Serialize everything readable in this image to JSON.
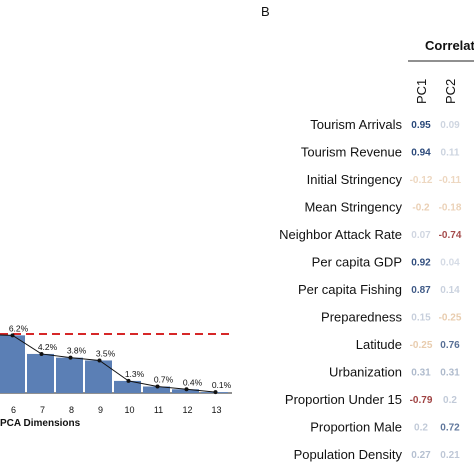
{
  "chart_data": [
    {
      "type": "bar",
      "xlabel": "PCA Dimensions",
      "categories": [
        "6",
        "7",
        "8",
        "9",
        "10",
        "11",
        "12",
        "13"
      ],
      "values": [
        6.2,
        4.2,
        3.8,
        3.5,
        1.3,
        0.7,
        0.4,
        0.1
      ],
      "value_labels": [
        "6.2%",
        "4.2%",
        "3.8%",
        "3.5%",
        "1.3%",
        "0.7%",
        "0.4%",
        "0.1%"
      ],
      "overlay": {
        "type": "line",
        "values": [
          6.2,
          4.2,
          3.8,
          3.5,
          1.3,
          0.7,
          0.4,
          0.1
        ]
      },
      "reference_line": {
        "style": "dashed",
        "color": "#d62728"
      },
      "bar_color": "#5b7fb5"
    },
    {
      "type": "table",
      "panel": "B",
      "title": "Correlat",
      "columns": [
        "PC1",
        "PC2"
      ],
      "rows": [
        {
          "label": "Tourism Arrivals",
          "values": [
            "0.95",
            "0.09"
          ]
        },
        {
          "label": "Tourism Revenue",
          "values": [
            "0.94",
            "0.11"
          ]
        },
        {
          "label": "Initial Stringency",
          "values": [
            "-0.12",
            "-0.11"
          ]
        },
        {
          "label": "Mean Stringency",
          "values": [
            "-0.2",
            "-0.18"
          ]
        },
        {
          "label": "Neighbor Attack Rate",
          "values": [
            "0.07",
            "-0.74"
          ]
        },
        {
          "label": "Per capita GDP",
          "values": [
            "0.92",
            "0.04"
          ]
        },
        {
          "label": "Per capita Fishing",
          "values": [
            "0.87",
            "0.14"
          ]
        },
        {
          "label": "Preparedness",
          "values": [
            "0.15",
            "-0.25"
          ]
        },
        {
          "label": "Latitude",
          "values": [
            "-0.25",
            "0.76"
          ]
        },
        {
          "label": "Urbanization",
          "values": [
            "0.31",
            "0.31"
          ]
        },
        {
          "label": "Proportion Under 15",
          "values": [
            "-0.79",
            "0.2"
          ]
        },
        {
          "label": "Proportion Male",
          "values": [
            "0.2",
            "0.72"
          ]
        },
        {
          "label": "Population Density",
          "values": [
            "0.27",
            "0.21"
          ]
        }
      ],
      "color_scale": {
        "negative": "#8b1a1a",
        "positive": "#1f3f73"
      }
    }
  ]
}
